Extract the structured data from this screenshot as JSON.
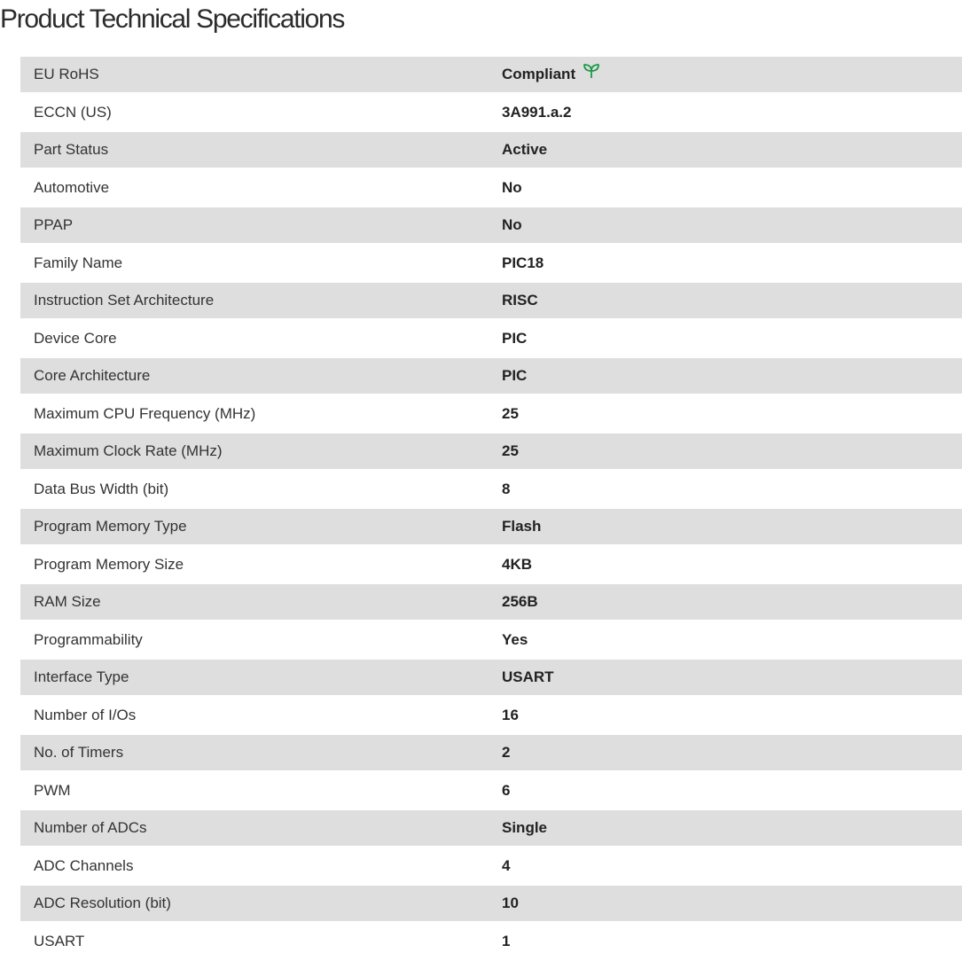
{
  "title": "Product Technical Specifications",
  "colors": {
    "row_alt": "#dedede",
    "rohs_icon": "#1a9a4a"
  },
  "specs": [
    {
      "label": "EU RoHS",
      "value": "Compliant",
      "icon": "leaf-icon"
    },
    {
      "label": "ECCN (US)",
      "value": "3A991.a.2"
    },
    {
      "label": "Part Status",
      "value": "Active"
    },
    {
      "label": "Automotive",
      "value": "No"
    },
    {
      "label": "PPAP",
      "value": "No"
    },
    {
      "label": "Family Name",
      "value": "PIC18"
    },
    {
      "label": "Instruction Set Architecture",
      "value": "RISC"
    },
    {
      "label": "Device Core",
      "value": "PIC"
    },
    {
      "label": "Core Architecture",
      "value": "PIC"
    },
    {
      "label": "Maximum CPU Frequency (MHz)",
      "value": "25"
    },
    {
      "label": "Maximum Clock Rate (MHz)",
      "value": "25"
    },
    {
      "label": "Data Bus Width (bit)",
      "value": "8"
    },
    {
      "label": "Program Memory Type",
      "value": "Flash"
    },
    {
      "label": "Program Memory Size",
      "value": "4KB"
    },
    {
      "label": "RAM Size",
      "value": "256B"
    },
    {
      "label": "Programmability",
      "value": "Yes"
    },
    {
      "label": "Interface Type",
      "value": "USART"
    },
    {
      "label": "Number of I/Os",
      "value": "16"
    },
    {
      "label": "No. of Timers",
      "value": "2"
    },
    {
      "label": "PWM",
      "value": "6"
    },
    {
      "label": "Number of ADCs",
      "value": "Single"
    },
    {
      "label": "ADC Channels",
      "value": "4"
    },
    {
      "label": "ADC Resolution (bit)",
      "value": "10"
    },
    {
      "label": "USART",
      "value": "1"
    }
  ]
}
